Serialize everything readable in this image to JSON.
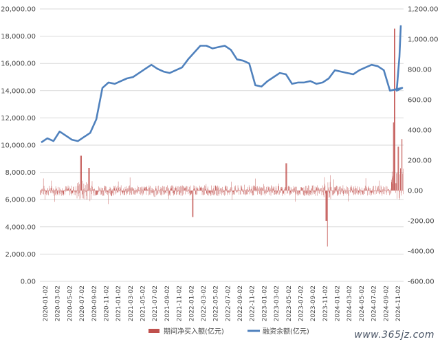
{
  "watermark": "www.365jz.com",
  "chart_data": {
    "type": "bar+line",
    "title": "",
    "left_axis": {
      "min": 0,
      "max": 20000,
      "ticks": [
        "0.00",
        "2,000.00",
        "4,000.00",
        "6,000.00",
        "8,000.00",
        "10,000.00",
        "12,000.00",
        "14,000.00",
        "16,000.00",
        "18,000.00",
        "20,000.00"
      ]
    },
    "right_axis": {
      "min": -600,
      "max": 1200,
      "ticks": [
        "-600.00",
        "-400.00",
        "-200.00",
        "0.00",
        "200.00",
        "400.00",
        "600.00",
        "800.00",
        "1,000.00",
        "1,200.00"
      ]
    },
    "x_ticks": [
      "2020-01-02",
      "2020-03-02",
      "2020-05-02",
      "2020-07-02",
      "2020-09-02",
      "2020-11-02",
      "2021-01-02",
      "2021-03-02",
      "2021-05-02",
      "2021-07-02",
      "2021-09-02",
      "2021-11-02",
      "2022-01-02",
      "2022-03-02",
      "2022-05-02",
      "2022-07-02",
      "2022-09-02",
      "2022-11-02",
      "2023-01-02",
      "2023-03-02",
      "2023-05-02",
      "2023-07-02",
      "2023-09-02",
      "2023-11-02",
      "2024-01-02",
      "2024-03-02",
      "2024-05-02",
      "2024-07-02",
      "2024-09-02",
      "2024-11-02"
    ],
    "legend": [
      {
        "name": "期间净买入额(亿元)",
        "color": "#c0504d",
        "kind": "bar"
      },
      {
        "name": "融资余额(亿元)",
        "color": "#4f81bd",
        "kind": "line"
      }
    ],
    "series": [
      {
        "name": "融资余额(亿元)",
        "axis": "left",
        "type": "line",
        "x": [
          0,
          1,
          2,
          3,
          4,
          5,
          6,
          7,
          8,
          9,
          10,
          11,
          12,
          13,
          14,
          15,
          16,
          17,
          18,
          19,
          20,
          21,
          22,
          23,
          24,
          25,
          26,
          27,
          28,
          29,
          30,
          31,
          32,
          33,
          34,
          35,
          36,
          37,
          38,
          39,
          40,
          41,
          42,
          43,
          44,
          45,
          46,
          47,
          48,
          49,
          50,
          51,
          52,
          53,
          54,
          55,
          56,
          57,
          58,
          59
        ],
        "values": [
          10200,
          10500,
          10300,
          11000,
          10700,
          10400,
          10300,
          10600,
          10900,
          11900,
          14200,
          14600,
          14500,
          14700,
          14900,
          15000,
          15300,
          15600,
          15900,
          15600,
          15400,
          15300,
          15500,
          15700,
          16300,
          16800,
          17300,
          17300,
          17100,
          17200,
          17300,
          17000,
          16300,
          16200,
          16000,
          14400,
          14300,
          14700,
          15000,
          15300,
          15200,
          14500,
          14600,
          14600,
          14700,
          14500,
          14600,
          14900,
          15500,
          15400,
          15300,
          15200,
          15500,
          15700,
          15900,
          15800,
          15500,
          14000,
          14100,
          14200
        ]
      },
      {
        "name": "期间净买入额(亿元)",
        "axis": "right",
        "type": "bar",
        "values": []
      }
    ]
  }
}
